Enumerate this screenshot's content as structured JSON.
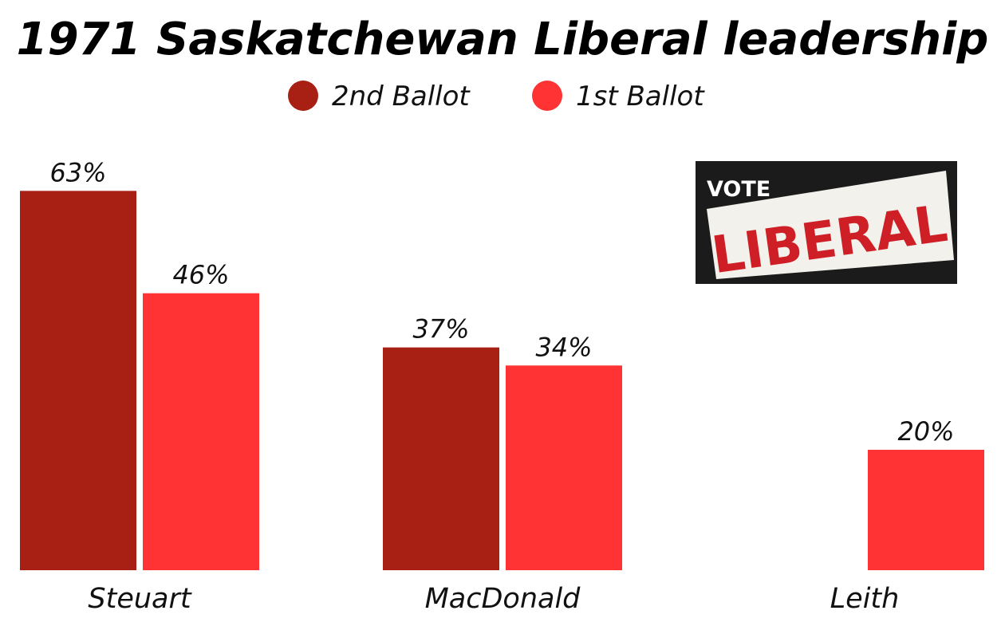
{
  "chart_data": {
    "type": "bar",
    "title": "1971 Saskatchewan Liberal leadership",
    "xlabel": "",
    "ylabel": "",
    "ylim": [
      0,
      65
    ],
    "grid": false,
    "legend_position": "top-center",
    "categories": [
      "Steuart",
      "MacDonald",
      "Leith"
    ],
    "series": [
      {
        "name": "2nd Ballot",
        "color": "#a82014",
        "values": [
          63,
          37,
          null
        ],
        "labels": [
          "63%",
          "37%",
          ""
        ]
      },
      {
        "name": "1st Ballot",
        "color": "#ff3333",
        "values": [
          46,
          34,
          20
        ],
        "labels": [
          "46%",
          "34%",
          "20%"
        ]
      }
    ]
  },
  "poster": {
    "line1": "VOTE",
    "line2": "LIBERAL"
  }
}
